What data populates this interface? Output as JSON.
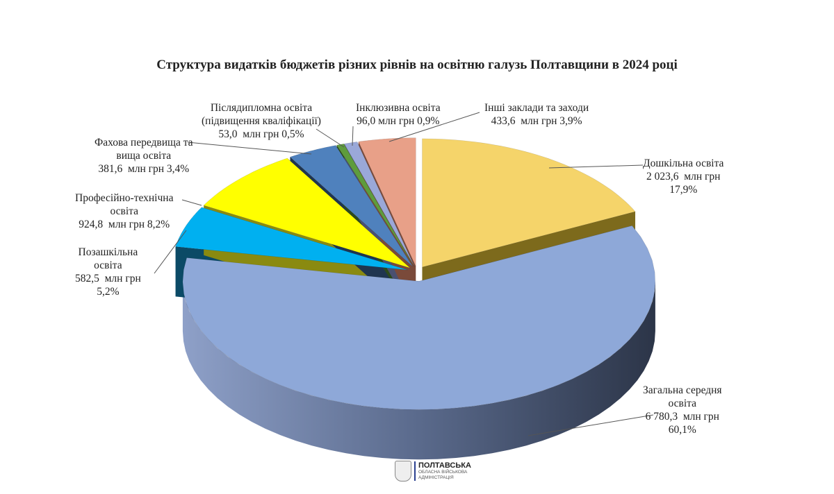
{
  "chart_data": {
    "type": "pie",
    "style": "3d-exploded",
    "title": "Структура видатків бюджетів різних рівнів на освітню галузь Полтавщини в 2024 році",
    "unit": "млн грн",
    "slices": [
      {
        "name": "Дошкільна освіта",
        "value": 2023.6,
        "percent": 17.9,
        "label": "Дошкільна освіта\n2 023,6  млн грн\n17,9%",
        "color": "#f5d46a",
        "side": "#7d6a1c"
      },
      {
        "name": "Загальна середня освіта",
        "value": 6780.3,
        "percent": 60.1,
        "label": "Загальна середня\nосвіта\n6 780,3  млн грн\n60,1%",
        "color": "#8ea8d8",
        "side": "#3a4660"
      },
      {
        "name": "Позашкільна освіта",
        "value": 582.5,
        "percent": 5.2,
        "label": "Позашкільна\nосвіта\n582,5  млн грн\n5,2%",
        "color": "#00b0f0",
        "side": "#0b4a66"
      },
      {
        "name": "Професійно-технічна освіта",
        "value": 924.8,
        "percent": 8.2,
        "label": "Професійно-технічна\nосвіта\n924,8  млн грн 8,2%",
        "color": "#ffff00",
        "side": "#8a8a10"
      },
      {
        "name": "Фахова передвища та вища освіта",
        "value": 381.6,
        "percent": 3.4,
        "label": "Фахова передвища та\nвища освіта\n381,6  млн грн 3,4%",
        "color": "#4f81bd",
        "side": "#1f3550"
      },
      {
        "name": "Післядипломна освіта (підвищення кваліфікації)",
        "value": 53.0,
        "percent": 0.5,
        "label": "Післядипломна освіта\n(підвищення кваліфікації)\n53,0  млн грн 0,5%",
        "color": "#5e9c3c",
        "side": "#2c4a1c"
      },
      {
        "name": "Інклюзивна освіта",
        "value": 96.0,
        "percent": 0.9,
        "label": "Інклюзивна освіта\n96,0 млн грн 0,9%",
        "color": "#9aa8d8",
        "side": "#4a5070"
      },
      {
        "name": "Інші заклади та заходи",
        "value": 433.6,
        "percent": 3.9,
        "label": "Інші заклади та заходи\n433,6  млн грн 3,9%",
        "color": "#e8a088",
        "side": "#7a4a3a"
      }
    ]
  },
  "logo": {
    "line1": "ПОЛТАВСЬКА",
    "line2": "ОБЛАСНА ВІЙСЬКОВА",
    "line3": "АДМІНІСТРАЦІЯ"
  }
}
